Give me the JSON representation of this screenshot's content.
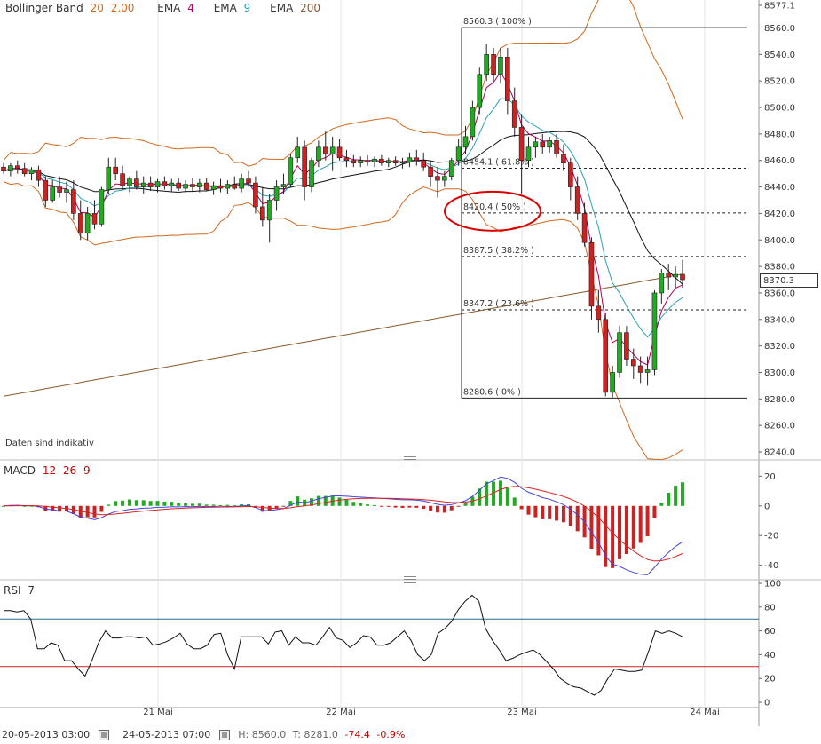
{
  "legend": {
    "bb_label": "Bollinger Band",
    "bb_period": "20",
    "bb_dev": "2.00",
    "ema4_label": "EMA",
    "ema4_value": "4",
    "ema9_label": "EMA",
    "ema9_value": "9",
    "ema200_label": "EMA",
    "ema200_value": "200"
  },
  "macd_legend": {
    "label": "MACD",
    "p1": "12",
    "p2": "26",
    "p3": "9"
  },
  "rsi_legend": {
    "label": "RSI",
    "period": "7"
  },
  "note": "Daten sind indikativ",
  "current_price": "8370.3",
  "footer": {
    "start": "20-05-2013 03:00",
    "end": "24-05-2013 07:00",
    "high": "H: 8560.0",
    "low": "T: 8281.0",
    "change": "-74.4",
    "change_pct": "-0.9%"
  },
  "colors": {
    "bollinger": "#d2691e",
    "ema4": "#b0005a",
    "ema9": "#2a9fb0",
    "ema200": "#8b5a2b",
    "up": "#22aa22",
    "down": "#cc2222",
    "signal": "#dd2222",
    "macd_line": "#4444dd"
  },
  "chart_data": [
    {
      "type": "candlestick",
      "yaxis_ticks": [
        "8577.1",
        "8560.0",
        "8540.0",
        "8520.0",
        "8500.0",
        "8480.0",
        "8460.0",
        "8440.0",
        "8420.0",
        "8400.0",
        "8380.0",
        "8360.0",
        "8340.0",
        "8320.0",
        "8300.0",
        "8280.0",
        "8260.0",
        "8240.0"
      ],
      "ylim": [
        8240,
        8577.1
      ],
      "xaxis_ticks": [
        "21 Mai",
        "22 Mai",
        "23 Mai",
        "24 Mai"
      ],
      "fibonacci": [
        {
          "label": "8560.3 ( 100% )",
          "value": 8560.3
        },
        {
          "label": "8454.1 ( 61.8% )",
          "value": 8454.1
        },
        {
          "label": "8420.4 ( 50% )",
          "value": 8420.4
        },
        {
          "label": "8387.5 ( 38.2% )",
          "value": 8387.5
        },
        {
          "label": "8347.2 ( 23.6% )",
          "value": 8347.2
        },
        {
          "label": "8280.6 ( 0% )",
          "value": 8280.6
        }
      ],
      "candles": [
        [
          8455,
          8458,
          8450,
          8452
        ],
        [
          8452,
          8458,
          8448,
          8456
        ],
        [
          8456,
          8460,
          8450,
          8454
        ],
        [
          8454,
          8458,
          8448,
          8450
        ],
        [
          8450,
          8455,
          8445,
          8453
        ],
        [
          8453,
          8456,
          8440,
          8445
        ],
        [
          8445,
          8448,
          8425,
          8430
        ],
        [
          8430,
          8445,
          8428,
          8440
        ],
        [
          8440,
          8448,
          8432,
          8436
        ],
        [
          8436,
          8444,
          8428,
          8438
        ],
        [
          8438,
          8445,
          8415,
          8420
        ],
        [
          8420,
          8430,
          8400,
          8405
        ],
        [
          8405,
          8425,
          8400,
          8420
        ],
        [
          8420,
          8430,
          8408,
          8412
        ],
        [
          8412,
          8440,
          8410,
          8438
        ],
        [
          8438,
          8462,
          8435,
          8455
        ],
        [
          8455,
          8462,
          8445,
          8450
        ],
        [
          8450,
          8456,
          8438,
          8441
        ],
        [
          8441,
          8448,
          8436,
          8446
        ],
        [
          8446,
          8452,
          8438,
          8440
        ],
        [
          8440,
          8448,
          8435,
          8443
        ],
        [
          8443,
          8448,
          8437,
          8440
        ],
        [
          8440,
          8446,
          8436,
          8444
        ],
        [
          8444,
          8448,
          8438,
          8441
        ],
        [
          8441,
          8446,
          8436,
          8443
        ],
        [
          8443,
          8447,
          8437,
          8439
        ],
        [
          8439,
          8445,
          8436,
          8442
        ],
        [
          8442,
          8447,
          8437,
          8440
        ],
        [
          8440,
          8446,
          8436,
          8443
        ],
        [
          8443,
          8447,
          8437,
          8438
        ],
        [
          8438,
          8444,
          8434,
          8441
        ],
        [
          8441,
          8446,
          8436,
          8439
        ],
        [
          8439,
          8445,
          8435,
          8442
        ],
        [
          8442,
          8448,
          8438,
          8439
        ],
        [
          8439,
          8450,
          8436,
          8446
        ],
        [
          8446,
          8452,
          8440,
          8443
        ],
        [
          8443,
          8448,
          8420,
          8425
        ],
        [
          8425,
          8440,
          8410,
          8415
        ],
        [
          8415,
          8435,
          8398,
          8430
        ],
        [
          8430,
          8445,
          8422,
          8440
        ],
        [
          8440,
          8450,
          8435,
          8442
        ],
        [
          8442,
          8465,
          8440,
          8462
        ],
        [
          8462,
          8478,
          8458,
          8470
        ],
        [
          8470,
          8475,
          8430,
          8440
        ],
        [
          8440,
          8462,
          8436,
          8460
        ],
        [
          8460,
          8475,
          8455,
          8470
        ],
        [
          8470,
          8482,
          8460,
          8465
        ],
        [
          8465,
          8478,
          8452,
          8470
        ],
        [
          8470,
          8476,
          8460,
          8462
        ],
        [
          8462,
          8468,
          8455,
          8460
        ],
        [
          8460,
          8464,
          8455,
          8458
        ],
        [
          8458,
          8463,
          8455,
          8460
        ],
        [
          8460,
          8464,
          8456,
          8459
        ],
        [
          8459,
          8463,
          8455,
          8461
        ],
        [
          8461,
          8464,
          8456,
          8458
        ],
        [
          8458,
          8462,
          8455,
          8460
        ],
        [
          8460,
          8463,
          8456,
          8458
        ],
        [
          8458,
          8462,
          8454,
          8459
        ],
        [
          8459,
          8466,
          8455,
          8462
        ],
        [
          8462,
          8468,
          8456,
          8460
        ],
        [
          8460,
          8466,
          8452,
          8455
        ],
        [
          8455,
          8460,
          8440,
          8448
        ],
        [
          8448,
          8455,
          8432,
          8445
        ],
        [
          8445,
          8452,
          8440,
          8448
        ],
        [
          8448,
          8462,
          8445,
          8460
        ],
        [
          8460,
          8476,
          8456,
          8470
        ],
        [
          8470,
          8486,
          8465,
          8478
        ],
        [
          8478,
          8505,
          8475,
          8500
        ],
        [
          8500,
          8530,
          8495,
          8525
        ],
        [
          8525,
          8548,
          8520,
          8540
        ],
        [
          8540,
          8545,
          8520,
          8525
        ],
        [
          8525,
          8545,
          8518,
          8538
        ],
        [
          8538,
          8545,
          8495,
          8505
        ],
        [
          8505,
          8515,
          8478,
          8485
        ],
        [
          8485,
          8495,
          8435,
          8460
        ],
        [
          8460,
          8478,
          8455,
          8470
        ],
        [
          8470,
          8478,
          8462,
          8474
        ],
        [
          8474,
          8480,
          8465,
          8470
        ],
        [
          8470,
          8478,
          8466,
          8475
        ],
        [
          8475,
          8480,
          8462,
          8465
        ],
        [
          8465,
          8472,
          8452,
          8458
        ],
        [
          8458,
          8462,
          8430,
          8440
        ],
        [
          8440,
          8448,
          8415,
          8420
        ],
        [
          8420,
          8428,
          8395,
          8398
        ],
        [
          8398,
          8402,
          8340,
          8350
        ],
        [
          8350,
          8362,
          8330,
          8340
        ],
        [
          8340,
          8345,
          8282,
          8285
        ],
        [
          8285,
          8305,
          8281,
          8300
        ],
        [
          8300,
          8335,
          8296,
          8330
        ],
        [
          8330,
          8335,
          8305,
          8310
        ],
        [
          8310,
          8318,
          8295,
          8305
        ],
        [
          8305,
          8312,
          8292,
          8300
        ],
        [
          8300,
          8312,
          8290,
          8302
        ],
        [
          8302,
          8362,
          8298,
          8360
        ],
        [
          8360,
          8378,
          8352,
          8375
        ],
        [
          8375,
          8382,
          8362,
          8372
        ],
        [
          8372,
          8380,
          8364,
          8374
        ],
        [
          8374,
          8385,
          8364,
          8370
        ]
      ]
    },
    {
      "type": "macd",
      "yaxis_ticks": [
        "20",
        "0",
        "-20",
        "-40"
      ],
      "ylim": [
        -45,
        25
      ]
    },
    {
      "type": "rsi",
      "yaxis_ticks": [
        "100",
        "80",
        "60",
        "40",
        "20",
        "0"
      ],
      "ylim": [
        0,
        100
      ],
      "upper": 70,
      "lower": 30,
      "values": [
        77,
        77,
        76,
        77,
        70,
        45,
        45,
        50,
        48,
        35,
        35,
        28,
        22,
        35,
        50,
        60,
        54,
        54,
        55,
        55,
        54,
        55,
        48,
        49,
        51,
        54,
        58,
        49,
        45,
        45,
        48,
        57,
        58,
        40,
        28,
        55,
        55,
        55,
        55,
        49,
        59,
        60,
        48,
        55,
        50,
        50,
        48,
        55,
        63,
        54,
        52,
        46,
        50,
        56,
        55,
        48,
        48,
        50,
        55,
        60,
        52,
        40,
        35,
        40,
        58,
        62,
        68,
        78,
        85,
        90,
        85,
        62,
        52,
        44,
        35,
        37,
        40,
        42,
        44,
        40,
        34,
        28,
        20,
        16,
        13,
        12,
        9,
        6,
        10,
        20,
        28,
        27,
        26,
        26,
        27,
        43,
        60,
        58,
        60,
        58,
        55
      ]
    }
  ]
}
